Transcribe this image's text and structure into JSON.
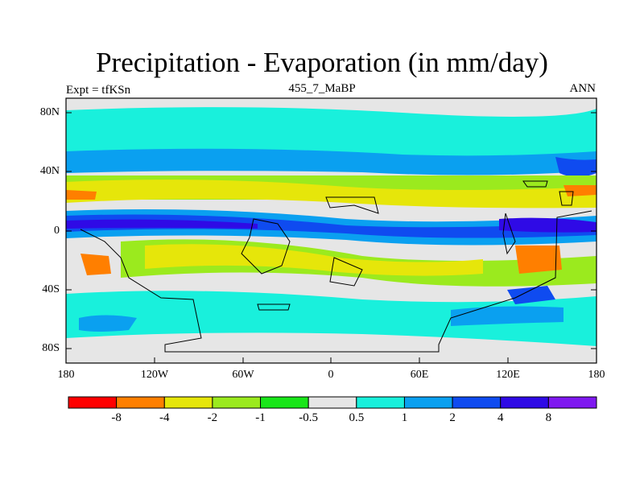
{
  "title": "Precipitation - Evaporation (in mm/day)",
  "left_label": "Expt = tfKSn",
  "center_label": "455_7_MaBP",
  "right_label": "ANN",
  "y_ticks": [
    "80N",
    "40N",
    "0",
    "40S",
    "80S"
  ],
  "x_ticks": [
    "180",
    "120W",
    "60W",
    "0",
    "60E",
    "120E",
    "180"
  ],
  "colorbar": {
    "colors": [
      "#ff0000",
      "#ff7f00",
      "#e6e60a",
      "#9bea1e",
      "#19e619",
      "#e6e6e6",
      "#19f0dc",
      "#0aa0f0",
      "#0f4bf0",
      "#2f0ae6",
      "#7f19f0"
    ],
    "labels": [
      "-8",
      "-4",
      "-2",
      "-1",
      "-0.5",
      "0.5",
      "1",
      "2",
      "4",
      "8"
    ]
  },
  "chart_data": {
    "type": "heatmap",
    "variable": "Precipitation - Evaporation",
    "units": "mm/day",
    "levels": [
      -8,
      -4,
      -2,
      -1,
      -0.5,
      0.5,
      1,
      2,
      4,
      8
    ],
    "xlim": [
      -180,
      180
    ],
    "ylim": [
      -90,
      90
    ],
    "x_ticks": [
      -180,
      -120,
      -60,
      0,
      60,
      120,
      180
    ],
    "y_ticks": [
      80,
      40,
      0,
      -40,
      -80
    ]
  }
}
